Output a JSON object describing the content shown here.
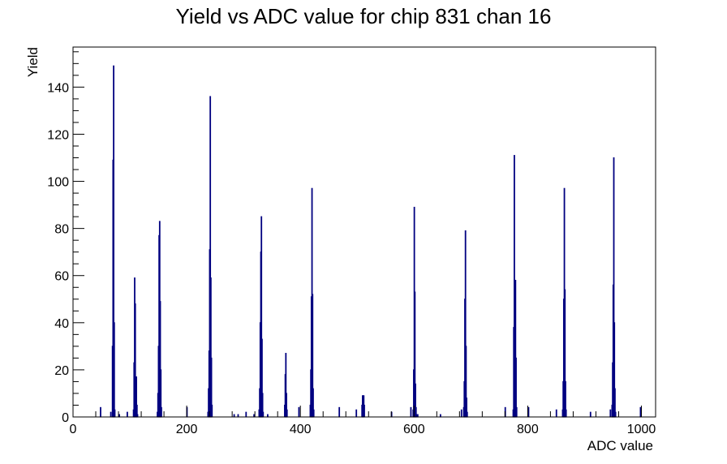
{
  "chart_data": {
    "type": "bar",
    "style": "histogram-step",
    "title": "Yield vs ADC value for chip 831 chan 16",
    "xlabel": "ADC value",
    "ylabel": "Yield",
    "xlim": [
      0,
      1025
    ],
    "ylim": [
      0,
      157
    ],
    "x_ticks": [
      0,
      200,
      400,
      600,
      800,
      1000
    ],
    "y_ticks": [
      0,
      20,
      40,
      60,
      80,
      100,
      120,
      140
    ],
    "grid": false,
    "legend": "none",
    "line_color": "#000080",
    "bins": [
      {
        "x": 48,
        "y": 4
      },
      {
        "x": 66,
        "y": 2
      },
      {
        "x": 69,
        "y": 30
      },
      {
        "x": 70,
        "y": 109
      },
      {
        "x": 71,
        "y": 149
      },
      {
        "x": 72,
        "y": 40
      },
      {
        "x": 73,
        "y": 3
      },
      {
        "x": 81,
        "y": 1
      },
      {
        "x": 95,
        "y": 2
      },
      {
        "x": 106,
        "y": 3
      },
      {
        "x": 107,
        "y": 23
      },
      {
        "x": 108,
        "y": 59
      },
      {
        "x": 109,
        "y": 48
      },
      {
        "x": 110,
        "y": 14
      },
      {
        "x": 111,
        "y": 17
      },
      {
        "x": 112,
        "y": 5
      },
      {
        "x": 113,
        "y": 1
      },
      {
        "x": 148,
        "y": 2
      },
      {
        "x": 149,
        "y": 10
      },
      {
        "x": 150,
        "y": 30
      },
      {
        "x": 151,
        "y": 77
      },
      {
        "x": 152,
        "y": 83
      },
      {
        "x": 153,
        "y": 49
      },
      {
        "x": 154,
        "y": 20
      },
      {
        "x": 155,
        "y": 4
      },
      {
        "x": 200,
        "y": 4
      },
      {
        "x": 237,
        "y": 2
      },
      {
        "x": 238,
        "y": 12
      },
      {
        "x": 239,
        "y": 28
      },
      {
        "x": 240,
        "y": 71
      },
      {
        "x": 241,
        "y": 136
      },
      {
        "x": 242,
        "y": 59
      },
      {
        "x": 243,
        "y": 25
      },
      {
        "x": 244,
        "y": 5
      },
      {
        "x": 283,
        "y": 1
      },
      {
        "x": 290,
        "y": 1
      },
      {
        "x": 304,
        "y": 2
      },
      {
        "x": 318,
        "y": 1
      },
      {
        "x": 327,
        "y": 3
      },
      {
        "x": 328,
        "y": 12
      },
      {
        "x": 329,
        "y": 40
      },
      {
        "x": 330,
        "y": 70
      },
      {
        "x": 331,
        "y": 85
      },
      {
        "x": 332,
        "y": 33
      },
      {
        "x": 333,
        "y": 10
      },
      {
        "x": 334,
        "y": 2
      },
      {
        "x": 342,
        "y": 1
      },
      {
        "x": 372,
        "y": 5
      },
      {
        "x": 373,
        "y": 18
      },
      {
        "x": 374,
        "y": 27
      },
      {
        "x": 375,
        "y": 10
      },
      {
        "x": 376,
        "y": 3
      },
      {
        "x": 397,
        "y": 4
      },
      {
        "x": 417,
        "y": 5
      },
      {
        "x": 418,
        "y": 20
      },
      {
        "x": 419,
        "y": 51
      },
      {
        "x": 420,
        "y": 97
      },
      {
        "x": 421,
        "y": 52
      },
      {
        "x": 422,
        "y": 12
      },
      {
        "x": 423,
        "y": 3
      },
      {
        "x": 468,
        "y": 4
      },
      {
        "x": 498,
        "y": 3
      },
      {
        "x": 508,
        "y": 5
      },
      {
        "x": 509,
        "y": 9
      },
      {
        "x": 510,
        "y": 9
      },
      {
        "x": 511,
        "y": 9
      },
      {
        "x": 512,
        "y": 5
      },
      {
        "x": 560,
        "y": 2
      },
      {
        "x": 594,
        "y": 4
      },
      {
        "x": 598,
        "y": 3
      },
      {
        "x": 599,
        "y": 20
      },
      {
        "x": 600,
        "y": 89
      },
      {
        "x": 601,
        "y": 53
      },
      {
        "x": 602,
        "y": 14
      },
      {
        "x": 603,
        "y": 4
      },
      {
        "x": 604,
        "y": 1
      },
      {
        "x": 606,
        "y": 1
      },
      {
        "x": 646,
        "y": 1
      },
      {
        "x": 683,
        "y": 3
      },
      {
        "x": 687,
        "y": 4
      },
      {
        "x": 688,
        "y": 15
      },
      {
        "x": 689,
        "y": 50
      },
      {
        "x": 690,
        "y": 79
      },
      {
        "x": 691,
        "y": 30
      },
      {
        "x": 692,
        "y": 8
      },
      {
        "x": 693,
        "y": 2
      },
      {
        "x": 760,
        "y": 4
      },
      {
        "x": 774,
        "y": 3
      },
      {
        "x": 775,
        "y": 38
      },
      {
        "x": 776,
        "y": 111
      },
      {
        "x": 777,
        "y": 40
      },
      {
        "x": 778,
        "y": 58
      },
      {
        "x": 779,
        "y": 25
      },
      {
        "x": 780,
        "y": 4
      },
      {
        "x": 801,
        "y": 4
      },
      {
        "x": 850,
        "y": 3
      },
      {
        "x": 861,
        "y": 3
      },
      {
        "x": 862,
        "y": 15
      },
      {
        "x": 863,
        "y": 50
      },
      {
        "x": 864,
        "y": 97
      },
      {
        "x": 865,
        "y": 54
      },
      {
        "x": 866,
        "y": 15
      },
      {
        "x": 867,
        "y": 3
      },
      {
        "x": 910,
        "y": 2
      },
      {
        "x": 945,
        "y": 3
      },
      {
        "x": 948,
        "y": 5
      },
      {
        "x": 949,
        "y": 23
      },
      {
        "x": 950,
        "y": 56
      },
      {
        "x": 951,
        "y": 110
      },
      {
        "x": 952,
        "y": 40
      },
      {
        "x": 953,
        "y": 12
      },
      {
        "x": 954,
        "y": 2
      },
      {
        "x": 998,
        "y": 4
      }
    ]
  }
}
